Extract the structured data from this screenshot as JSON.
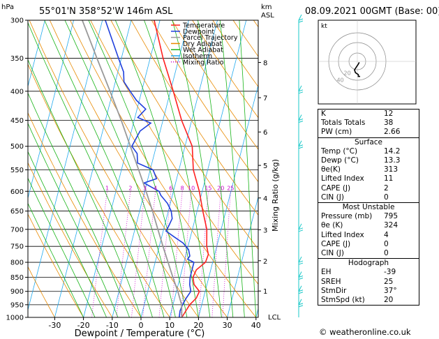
{
  "header": {
    "hpa_unit": "hPa",
    "location": "55°01'N  358°52'W  146m  ASL",
    "km_unit": "km",
    "asl_unit": "ASL",
    "datetime": "08.09.2021  00GMT  (Base: 00)"
  },
  "axes": {
    "xlabel": "Dewpoint / Temperature (°C)",
    "mixing_label": "Mixing Ratio (g/kg)",
    "lcl_label": "LCL"
  },
  "legend": [
    {
      "name": "Temperature",
      "color": "#ff2020"
    },
    {
      "name": "Dewpoint",
      "color": "#1f3fdc"
    },
    {
      "name": "Parcel Trajectory",
      "color": "#999999"
    },
    {
      "name": "Dry Adiabat",
      "color": "#e88a00"
    },
    {
      "name": "Wet Adiabat",
      "color": "#18b418"
    },
    {
      "name": "Isotherm",
      "color": "#22aaee"
    },
    {
      "name": "Mixing Ratio",
      "color": "#cc00cc"
    }
  ],
  "chart_data": {
    "type": "line",
    "title": "55°01'N  358°52'W  146m  ASL",
    "xlabel": "Dewpoint / Temperature (°C)",
    "ylabel": "hPa",
    "pressure_levels": [
      300,
      350,
      400,
      450,
      500,
      550,
      600,
      650,
      700,
      750,
      800,
      850,
      900,
      950,
      1000
    ],
    "x_ticks": [
      -30,
      -20,
      -10,
      0,
      10,
      20,
      30,
      40
    ],
    "xlim": [
      -35,
      40
    ],
    "ylim": [
      1000,
      300
    ],
    "y_scale": "log",
    "km_ticks": [
      1,
      2,
      3,
      4,
      5,
      6,
      7,
      8
    ],
    "mixing_ratio_labels": [
      "1",
      "2",
      "3",
      "4",
      "6",
      "8",
      "10",
      "15",
      "20",
      "25"
    ],
    "mixing_ratio_values": [
      1,
      2,
      3,
      4,
      6,
      8,
      10,
      15,
      20,
      25
    ],
    "series": [
      {
        "name": "Temperature",
        "color": "#ff2020",
        "points": [
          [
            1000,
            14.2
          ],
          [
            975,
            15.0
          ],
          [
            950,
            15.8
          ],
          [
            925,
            17.5
          ],
          [
            900,
            18.0
          ],
          [
            875,
            15.5
          ],
          [
            850,
            14.5
          ],
          [
            825,
            15.0
          ],
          [
            800,
            17.5
          ],
          [
            775,
            17.8
          ],
          [
            750,
            16.5
          ],
          [
            700,
            15.0
          ],
          [
            650,
            12.0
          ],
          [
            600,
            9.0
          ],
          [
            550,
            5.0
          ],
          [
            500,
            2.5
          ],
          [
            450,
            -3.5
          ],
          [
            400,
            -9.0
          ],
          [
            350,
            -15.5
          ],
          [
            300,
            -22.0
          ]
        ]
      },
      {
        "name": "Dewpoint",
        "color": "#1f3fdc",
        "points": [
          [
            1000,
            13.3
          ],
          [
            975,
            13.0
          ],
          [
            950,
            13.3
          ],
          [
            925,
            14.0
          ],
          [
            900,
            15.0
          ],
          [
            875,
            14.0
          ],
          [
            850,
            13.5
          ],
          [
            825,
            13.5
          ],
          [
            800,
            13.5
          ],
          [
            790,
            11.0
          ],
          [
            780,
            11.5
          ],
          [
            760,
            10.5
          ],
          [
            740,
            8.0
          ],
          [
            720,
            4.0
          ],
          [
            705,
            1.0
          ],
          [
            690,
            1.5
          ],
          [
            670,
            2.0
          ],
          [
            650,
            1.0
          ],
          [
            630,
            -1.0
          ],
          [
            610,
            -4.0
          ],
          [
            600,
            -5.0
          ],
          [
            590,
            -8.0
          ],
          [
            580,
            -11.0
          ],
          [
            570,
            -7.0
          ],
          [
            550,
            -9.0
          ],
          [
            535,
            -15.0
          ],
          [
            515,
            -16.0
          ],
          [
            500,
            -18.5
          ],
          [
            470,
            -17.0
          ],
          [
            455,
            -14.0
          ],
          [
            445,
            -19.0
          ],
          [
            430,
            -17.0
          ],
          [
            415,
            -21.0
          ],
          [
            400,
            -24.0
          ],
          [
            385,
            -27.0
          ],
          [
            370,
            -28.0
          ],
          [
            350,
            -31.0
          ],
          [
            300,
            -39.0
          ]
        ]
      },
      {
        "name": "Parcel Trajectory",
        "color": "#999999",
        "points": [
          [
            1000,
            14.2
          ],
          [
            950,
            13.0
          ],
          [
            900,
            10.5
          ],
          [
            850,
            7.5
          ],
          [
            800,
            4.5
          ],
          [
            750,
            1.3
          ],
          [
            700,
            -2.0
          ],
          [
            650,
            -5.5
          ],
          [
            600,
            -9.5
          ],
          [
            550,
            -14.0
          ],
          [
            500,
            -19.0
          ],
          [
            450,
            -24.5
          ],
          [
            400,
            -31.0
          ],
          [
            350,
            -38.5
          ],
          [
            300,
            -47.0
          ]
        ]
      }
    ],
    "wind_barbs": {
      "pressures": [
        300,
        400,
        450,
        500,
        700,
        800,
        850,
        900,
        950
      ],
      "color": "#18c8c8"
    }
  },
  "hodograph": {
    "label": "kt",
    "ring_labels": [
      "20",
      "40"
    ],
    "points_kt": [
      [
        2,
        -1
      ],
      [
        1,
        -3
      ],
      [
        -1,
        -6
      ],
      [
        -3,
        -9
      ],
      [
        -2,
        -12
      ],
      [
        1,
        -14
      ],
      [
        1,
        -16
      ],
      [
        3,
        -16
      ]
    ]
  },
  "indices": {
    "rows": [
      {
        "label": "K",
        "value": "12"
      },
      {
        "label": "Totals Totals",
        "value": "38"
      },
      {
        "label": "PW (cm)",
        "value": "2.66"
      }
    ]
  },
  "surface": {
    "title": "Surface",
    "rows": [
      {
        "label": "Temp (°C)",
        "value": "14.2"
      },
      {
        "label": "Dewp (°C)",
        "value": "13.3"
      },
      {
        "label": "θe(K)",
        "value": "313"
      },
      {
        "label": "Lifted Index",
        "value": "11"
      },
      {
        "label": "CAPE (J)",
        "value": "2"
      },
      {
        "label": "CIN (J)",
        "value": "0"
      }
    ]
  },
  "most_unstable": {
    "title": "Most Unstable",
    "rows": [
      {
        "label": "Pressure (mb)",
        "value": "795"
      },
      {
        "label": "θe (K)",
        "value": "324"
      },
      {
        "label": "Lifted Index",
        "value": "4"
      },
      {
        "label": "CAPE (J)",
        "value": "0"
      },
      {
        "label": "CIN (J)",
        "value": "0"
      }
    ]
  },
  "hodograph_table": {
    "title": "Hodograph",
    "rows": [
      {
        "label": "EH",
        "value": "-39"
      },
      {
        "label": "SREH",
        "value": "25"
      },
      {
        "label": "StmDir",
        "value": "37°"
      },
      {
        "label": "StmSpd (kt)",
        "value": "20"
      }
    ]
  },
  "footer": {
    "credit": "© weatheronline.co.uk"
  }
}
